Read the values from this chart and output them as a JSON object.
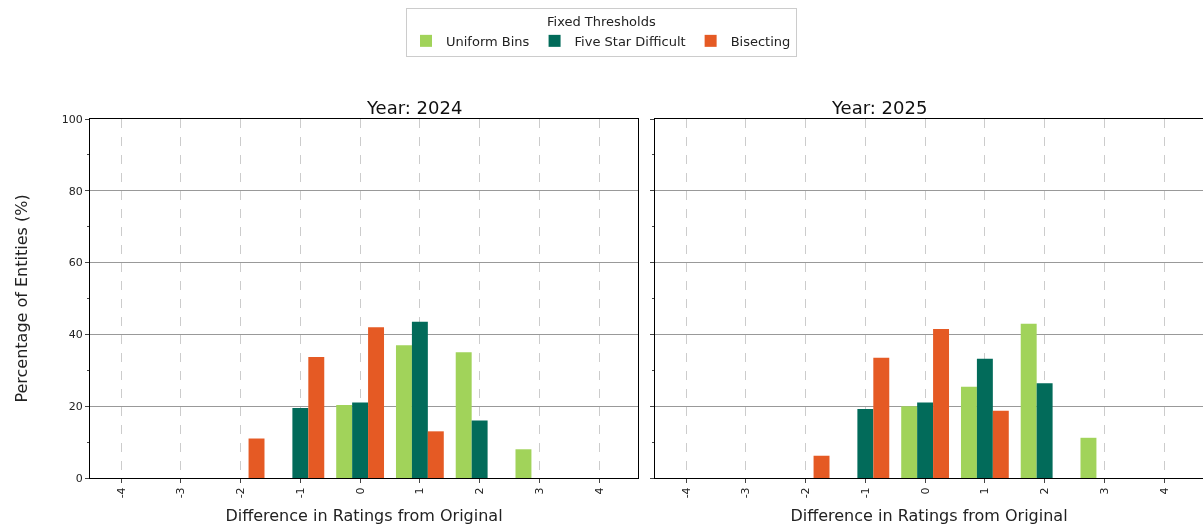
{
  "chart_data": [
    {
      "type": "bar",
      "title": "Year: 2024",
      "xlabel": "Difference in Ratings from Original",
      "ylabel": "Percentage of Entities (%)",
      "legend_title": "Fixed Thresholds",
      "legend": "top",
      "grid": true,
      "x": [
        -2,
        -1,
        0,
        1,
        2,
        3
      ],
      "xlim": [
        -4.52,
        4.65
      ],
      "xticks": [
        -4,
        -3,
        -2,
        -1,
        0,
        1,
        2,
        3,
        4
      ],
      "ylim": [
        0,
        100
      ],
      "yticks": [
        0,
        20,
        40,
        60,
        80,
        100
      ],
      "series": [
        {
          "name": "Uniform Bins",
          "color": "#a1d35a",
          "values": [
            null,
            null,
            20.3,
            37,
            35,
            8
          ]
        },
        {
          "name": "Five Star Difficult",
          "color": "#026b5a",
          "values": [
            null,
            19.5,
            21,
            43.5,
            16,
            null
          ]
        },
        {
          "name": "Bisecting",
          "color": "#e55a24",
          "values": [
            11,
            33.7,
            42,
            13,
            null,
            null
          ]
        }
      ]
    },
    {
      "type": "bar",
      "title": "Year: 2025",
      "xlabel": "Difference in Ratings from Original",
      "grid": true,
      "tick_labels": "x",
      "x": [
        -2,
        -1,
        0,
        1,
        2,
        3
      ],
      "xlim": [
        -4.52,
        4.65
      ],
      "xticks": [
        -4,
        -3,
        -2,
        -1,
        0,
        1,
        2,
        3,
        4
      ],
      "ylim": [
        0,
        100
      ],
      "yticks": [
        0,
        20,
        40,
        60,
        80,
        100
      ],
      "series": [
        {
          "name": "Uniform Bins",
          "color": "#a1d35a",
          "values": [
            null,
            null,
            20,
            25.4,
            43,
            11.2
          ]
        },
        {
          "name": "Five Star Difficult",
          "color": "#026b5a",
          "values": [
            null,
            19.2,
            21,
            33.2,
            26.4,
            null
          ]
        },
        {
          "name": "Bisecting",
          "color": "#e55a24",
          "values": [
            6.2,
            33.5,
            41.5,
            18.7,
            null,
            null
          ]
        }
      ]
    }
  ]
}
